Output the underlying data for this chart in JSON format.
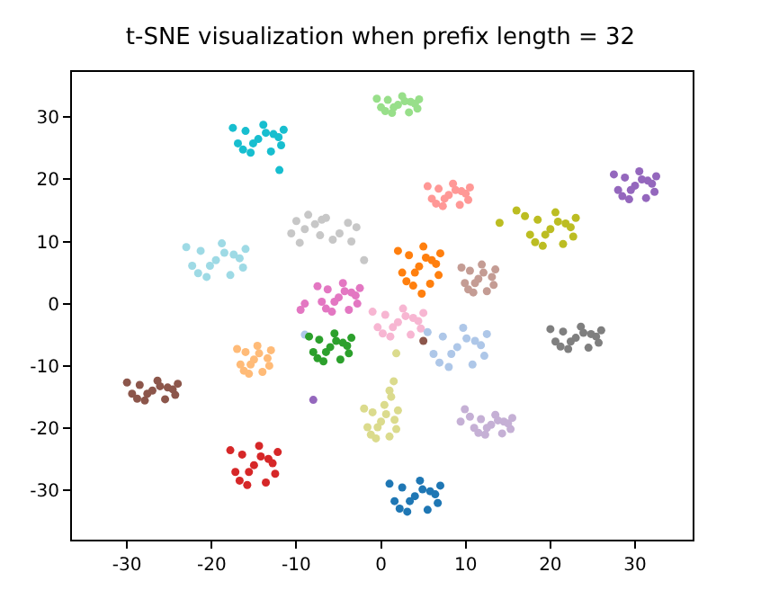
{
  "chart_data": {
    "type": "scatter",
    "title": "t-SNE visualization when prefix length = 32",
    "marker": "circle",
    "grid": false,
    "xlim": [
      -36.5,
      36.8
    ],
    "ylim": [
      -38,
      37.3
    ],
    "xticks": [
      -30,
      -20,
      -10,
      0,
      10,
      20,
      30
    ],
    "yticks": [
      -30,
      -20,
      -10,
      0,
      10,
      20,
      30
    ],
    "series": [
      {
        "color": "#17becf",
        "x": [
          -14.5,
          -12.7,
          -16,
          -11.8,
          -16.9,
          -13.9,
          -15.4,
          -11.5,
          -17.5,
          -13,
          -16.3,
          -13.6,
          -15.1,
          -12.1,
          -12
        ],
        "values": [
          26.5,
          27.3,
          27.8,
          25.5,
          25.8,
          28.8,
          24.3,
          28,
          28.3,
          24.5,
          24.8,
          27.5,
          25.8,
          26.8,
          21.5
        ]
      },
      {
        "color": "#98df8a",
        "x": [
          2,
          3.5,
          0.8,
          4.3,
          0,
          2.5,
          1.3,
          4.5,
          -0.5,
          3.3,
          0.5,
          2.8,
          1.5,
          4
        ],
        "values": [
          32,
          32.5,
          32.8,
          31.4,
          31.6,
          33.4,
          30.7,
          32.9,
          33,
          30.8,
          31,
          32.6,
          31.6,
          32.2
        ]
      },
      {
        "color": "#9edae5",
        "x": [
          -19.5,
          -17.4,
          -21.3,
          -16.3,
          -22.3,
          -18.8,
          -20.6,
          -16,
          -23,
          -17.8,
          -21.6,
          -18.5,
          -20.2,
          -16.7
        ],
        "values": [
          7,
          7.9,
          8.5,
          5.8,
          6.1,
          9.7,
          4.3,
          8.8,
          9.1,
          4.6,
          4.9,
          8.2,
          6.1,
          7.3
        ]
      },
      {
        "color": "#c7c7c7",
        "x": [
          -9,
          -7.8,
          -10,
          -7.2,
          -10.6,
          -8.6,
          -9.6,
          -7,
          -6.5,
          -3.5,
          -5.7,
          -3.9,
          -4.9,
          -2.9,
          -2
        ],
        "values": [
          12,
          12.8,
          13.3,
          11,
          11.3,
          14.3,
          9.8,
          13.5,
          13.8,
          10,
          10.3,
          13,
          11.3,
          12.3,
          7
        ]
      },
      {
        "color": "#ff7f0e",
        "x": [
          4.5,
          6,
          3.3,
          6.8,
          2.5,
          5,
          3.8,
          7,
          2,
          5.8,
          3,
          5.3,
          4,
          6.5,
          4.8
        ],
        "values": [
          6,
          7,
          7.8,
          4.6,
          5,
          9.2,
          2.9,
          8.1,
          8.5,
          3.2,
          3.6,
          7.4,
          5,
          6.4,
          1.6
        ]
      },
      {
        "color": "#e377c2",
        "x": [
          -5,
          -3.5,
          -6.3,
          -2.8,
          -7,
          -4.5,
          -5.8,
          -2.5,
          -7.5,
          -3.8,
          -6.5,
          -4.3,
          -5.5,
          -3,
          -9.5,
          -9
        ],
        "values": [
          1,
          1.8,
          2.3,
          0,
          0.3,
          3.3,
          -1.3,
          2.5,
          2.8,
          -1,
          -0.8,
          2,
          0.3,
          1.3,
          -1,
          0
        ]
      },
      {
        "color": "#ff9896",
        "x": [
          8,
          9.5,
          6.8,
          10.3,
          6,
          8.5,
          7.3,
          10.5,
          5.5,
          9.3,
          6.5,
          8.8,
          7.5,
          10
        ],
        "values": [
          17.5,
          18.1,
          18.5,
          16.7,
          16.9,
          19.3,
          15.7,
          18.7,
          18.9,
          15.9,
          16.1,
          18.3,
          16.9,
          17.7
        ]
      },
      {
        "color": "#9467bd",
        "x": [
          30,
          31.5,
          28.8,
          32.3,
          28,
          30.5,
          29.3,
          32.5,
          27.5,
          31.3,
          28.5,
          30.8,
          29.5,
          32,
          -8
        ],
        "values": [
          19,
          19.8,
          20.3,
          18,
          18.3,
          21.3,
          16.8,
          20.5,
          20.8,
          17,
          17.3,
          20,
          18.3,
          19.3,
          -15.5
        ]
      },
      {
        "color": "#bcbd22",
        "x": [
          20,
          21.8,
          18.5,
          22.7,
          17.6,
          20.6,
          19.1,
          23,
          17,
          21.5,
          18.2,
          20.9,
          19.4,
          22.4,
          14,
          16
        ],
        "values": [
          12,
          12.9,
          13.5,
          10.8,
          11.1,
          14.7,
          9.3,
          13.8,
          14.1,
          9.6,
          9.9,
          13.2,
          11.1,
          12.3,
          13,
          15
        ]
      },
      {
        "color": "#c49c94",
        "x": [
          11.5,
          10.5,
          13.3,
          9.9,
          11.9,
          10.9,
          13.5,
          9.5,
          12.5,
          10.3,
          12.1,
          11.1,
          13.1
        ],
        "values": [
          4,
          5.3,
          3,
          3.3,
          6.3,
          1.8,
          5.5,
          5.8,
          2,
          2.3,
          5,
          3.3,
          4.3
        ]
      },
      {
        "color": "#f7b6d2",
        "x": [
          2,
          3.8,
          0.5,
          4.7,
          -0.4,
          2.6,
          1.1,
          5,
          -1,
          3.5,
          0.2,
          2.9,
          1.4,
          4.4
        ],
        "values": [
          -3,
          -2.3,
          -1.8,
          -4,
          -3.8,
          -0.8,
          -5.3,
          -1.5,
          -1.3,
          -5,
          -4.8,
          -2,
          -3.8,
          -2.8
        ]
      },
      {
        "color": "#7f7f7f",
        "x": [
          23,
          24.8,
          21.5,
          25.7,
          20.6,
          23.6,
          22.1,
          26,
          20,
          24.5,
          21.2,
          23.9,
          22.4,
          25.4
        ],
        "values": [
          -5.5,
          -4.9,
          -4.5,
          -6.3,
          -6.1,
          -3.7,
          -7.3,
          -4.3,
          -4.1,
          -7.1,
          -6.9,
          -4.7,
          -6.1,
          -5.3
        ]
      },
      {
        "color": "#aec7e8",
        "x": [
          9,
          11.1,
          7.3,
          12.2,
          6.2,
          9.7,
          8,
          12.5,
          5.5,
          10.8,
          6.9,
          10.1,
          8.3,
          11.8,
          -9
        ],
        "values": [
          -7,
          -6,
          -5.3,
          -8.4,
          -8.1,
          -3.9,
          -10.2,
          -4.9,
          -4.6,
          -9.8,
          -9.5,
          -5.6,
          -8.1,
          -6.7,
          -5
        ]
      },
      {
        "color": "#8c564b",
        "x": [
          -27,
          -25.2,
          -28.5,
          -24.3,
          -29.4,
          -26.4,
          -27.9,
          -24,
          -30,
          -25.5,
          -28.8,
          -26.1,
          -27.6,
          -24.6,
          5
        ],
        "values": [
          -14,
          -13.5,
          -13.1,
          -14.7,
          -14.5,
          -12.4,
          -15.6,
          -12.9,
          -12.7,
          -15.4,
          -15.3,
          -13.3,
          -14.5,
          -13.8,
          -6
        ]
      },
      {
        "color": "#ffbb78",
        "x": [
          -15,
          -16,
          -13.2,
          -16.6,
          -14.6,
          -15.6,
          -13,
          -17,
          -14,
          -16.2,
          -14.4,
          -15.4,
          -13.4
        ],
        "values": [
          -9,
          -7.8,
          -10,
          -9.8,
          -6.8,
          -11.3,
          -7.5,
          -7.3,
          -11,
          -10.8,
          -8,
          -9.8,
          -8.8
        ]
      },
      {
        "color": "#2ca02c",
        "x": [
          -6,
          -4.5,
          -7.3,
          -3.8,
          -8,
          -5.5,
          -6.8,
          -3.5,
          -8.5,
          -4.8,
          -7.5,
          -5.3,
          -6.5,
          -4
        ],
        "values": [
          -7,
          -6.3,
          -5.8,
          -8,
          -7.8,
          -4.8,
          -9.3,
          -5.5,
          -5.3,
          -9,
          -8.8,
          -6,
          -7.8,
          -6.8
        ]
      },
      {
        "color": "#dbdb8d",
        "x": [
          0,
          -1,
          1.8,
          -1.6,
          0.4,
          -0.6,
          2,
          -2,
          1,
          -1.2,
          0.6,
          -0.4,
          1.6,
          1,
          1.5,
          1.2,
          1.8
        ],
        "values": [
          -19,
          -17.5,
          -20.2,
          -19.9,
          -16.3,
          -21.7,
          -17.2,
          -16.9,
          -21.4,
          -21.1,
          -17.8,
          -19.9,
          -18.7,
          -14,
          -12.5,
          -15,
          -8
        ]
      },
      {
        "color": "#c5b0d5",
        "x": [
          13,
          14.5,
          11.8,
          15.3,
          11,
          13.5,
          12.3,
          15.5,
          10.5,
          14.3,
          11.5,
          13.8,
          12.5,
          15,
          9.9,
          9.4
        ],
        "values": [
          -19.5,
          -19,
          -18.6,
          -20.2,
          -20,
          -17.9,
          -21.1,
          -18.4,
          -18.2,
          -20.9,
          -20.8,
          -18.8,
          -20,
          -19.3,
          -17,
          -19
        ]
      },
      {
        "color": "#d62728",
        "x": [
          -15,
          -13.3,
          -16.4,
          -12.5,
          -17.2,
          -14.4,
          -15.8,
          -12.2,
          -17.8,
          -13.6,
          -16.7,
          -14.2,
          -15.6,
          -12.8
        ],
        "values": [
          -26,
          -25,
          -24.3,
          -27.4,
          -27.1,
          -22.9,
          -29.2,
          -23.9,
          -23.6,
          -28.8,
          -28.5,
          -24.6,
          -27.1,
          -25.7
        ]
      },
      {
        "color": "#1f77b4",
        "x": [
          4,
          5.8,
          2.5,
          6.7,
          1.6,
          4.6,
          3.1,
          7,
          1,
          5.5,
          2.2,
          4.9,
          3.4,
          6.4
        ],
        "values": [
          -31,
          -30.2,
          -29.6,
          -32.1,
          -31.8,
          -28.5,
          -33.5,
          -29.3,
          -29,
          -33.2,
          -33,
          -29.9,
          -31.8,
          -30.7
        ]
      }
    ]
  }
}
